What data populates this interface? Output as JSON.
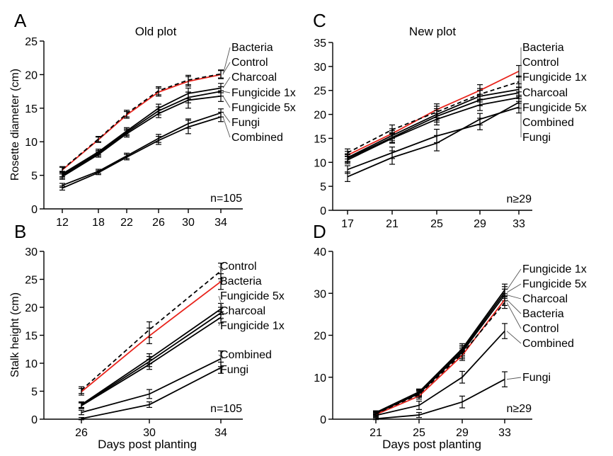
{
  "chart_data": [
    {
      "type": "line",
      "panel_letter": "A",
      "title": "Old plot",
      "xlabel": "",
      "ylabel": "Rosette diameter (cm)",
      "x": [
        12,
        18,
        22,
        26,
        30,
        34
      ],
      "ylim": [
        0,
        25
      ],
      "yticks": [
        0,
        5,
        10,
        15,
        20,
        25
      ],
      "annotation": "n=105",
      "series": [
        {
          "name": "Bacteria",
          "color": "#e8231b",
          "dashed": false,
          "values": [
            5.8,
            10.3,
            14.0,
            17.4,
            19.0,
            20.0
          ],
          "errors": [
            0.4,
            0.4,
            0.5,
            0.6,
            0.7,
            0.6
          ]
        },
        {
          "name": "Control",
          "color": "#000000",
          "dashed": true,
          "values": [
            5.9,
            10.4,
            14.2,
            17.6,
            19.2,
            20.1
          ],
          "errors": [
            0.4,
            0.4,
            0.5,
            0.6,
            0.7,
            0.6
          ]
        },
        {
          "name": "Charcoal",
          "color": "#000000",
          "dashed": false,
          "values": [
            5.2,
            8.5,
            11.6,
            15.0,
            17.2,
            18.0
          ],
          "errors": [
            0.4,
            0.4,
            0.5,
            0.6,
            0.8,
            0.7
          ]
        },
        {
          "name": "Fungicide 1x",
          "color": "#000000",
          "dashed": false,
          "values": [
            5.0,
            8.3,
            11.4,
            14.6,
            16.6,
            17.5
          ],
          "errors": [
            0.4,
            0.4,
            0.5,
            0.6,
            0.8,
            0.7
          ]
        },
        {
          "name": "Fungicide 5x",
          "color": "#000000",
          "dashed": false,
          "values": [
            4.8,
            8.1,
            11.2,
            14.2,
            16.2,
            16.8
          ],
          "errors": [
            0.4,
            0.4,
            0.5,
            0.6,
            1.2,
            0.8
          ]
        },
        {
          "name": "Fungi",
          "color": "#000000",
          "dashed": false,
          "values": [
            3.5,
            5.6,
            7.9,
            10.5,
            12.7,
            14.3
          ],
          "errors": [
            0.3,
            0.3,
            0.4,
            0.6,
            0.7,
            0.6
          ]
        },
        {
          "name": "Combined",
          "color": "#000000",
          "dashed": false,
          "values": [
            3.1,
            5.4,
            7.7,
            10.2,
            12.2,
            13.7
          ],
          "errors": [
            0.3,
            0.3,
            0.4,
            0.6,
            1.0,
            0.7
          ]
        }
      ]
    },
    {
      "type": "line",
      "panel_letter": "C",
      "title": "New plot",
      "xlabel": "",
      "ylabel": "",
      "x": [
        17,
        21,
        25,
        29,
        33
      ],
      "ylim": [
        0,
        35
      ],
      "yticks": [
        0,
        5,
        10,
        15,
        20,
        25,
        30,
        35
      ],
      "annotation": "n≥29",
      "series": [
        {
          "name": "Bacteria",
          "color": "#e8231b",
          "dashed": false,
          "values": [
            11.5,
            16.0,
            21.0,
            25.0,
            29.0
          ],
          "errors": [
            0.8,
            1.0,
            1.2,
            1.2,
            1.2
          ]
        },
        {
          "name": "Control",
          "color": "#000000",
          "dashed": true,
          "values": [
            12.0,
            16.8,
            20.5,
            24.2,
            26.8
          ],
          "errors": [
            0.8,
            1.0,
            1.2,
            1.2,
            1.2
          ]
        },
        {
          "name": "Fungicide 1x",
          "color": "#000000",
          "dashed": false,
          "values": [
            11.0,
            15.6,
            20.0,
            23.8,
            25.2
          ],
          "errors": [
            0.8,
            1.0,
            1.2,
            1.2,
            1.2
          ]
        },
        {
          "name": "Charcoal",
          "color": "#000000",
          "dashed": false,
          "values": [
            10.8,
            15.2,
            19.6,
            23.0,
            24.5
          ],
          "errors": [
            0.8,
            1.0,
            1.2,
            1.2,
            1.2
          ]
        },
        {
          "name": "Fungicide 5x",
          "color": "#000000",
          "dashed": false,
          "values": [
            10.5,
            15.0,
            19.0,
            22.0,
            23.5
          ],
          "errors": [
            0.8,
            1.0,
            1.2,
            1.2,
            1.2
          ]
        },
        {
          "name": "Combined",
          "color": "#000000",
          "dashed": false,
          "values": [
            8.5,
            12.0,
            15.5,
            18.0,
            22.5
          ],
          "errors": [
            0.8,
            1.2,
            1.4,
            1.2,
            1.2
          ]
        },
        {
          "name": "Fungi",
          "color": "#000000",
          "dashed": false,
          "values": [
            7.0,
            11.0,
            14.0,
            19.0,
            21.5
          ],
          "errors": [
            1.0,
            1.4,
            1.6,
            1.2,
            1.2
          ]
        }
      ]
    },
    {
      "type": "line",
      "panel_letter": "B",
      "title": "",
      "xlabel": "Days post planting",
      "ylabel": "Stalk height (cm)",
      "x": [
        26,
        30,
        34
      ],
      "ylim": [
        0,
        30
      ],
      "yticks": [
        0,
        5,
        10,
        15,
        20,
        25,
        30
      ],
      "annotation": "n=105",
      "series": [
        {
          "name": "Control",
          "color": "#000000",
          "dashed": true,
          "values": [
            5.2,
            16.0,
            26.5
          ],
          "errors": [
            0.6,
            1.4,
            1.4
          ]
        },
        {
          "name": "Bacteria",
          "color": "#e8231b",
          "dashed": false,
          "values": [
            4.9,
            14.9,
            24.6
          ],
          "errors": [
            0.6,
            1.4,
            1.4
          ]
        },
        {
          "name": "Fungicide 5x",
          "color": "#000000",
          "dashed": false,
          "values": [
            2.6,
            10.8,
            19.7
          ],
          "errors": [
            0.5,
            0.9,
            1.0
          ]
        },
        {
          "name": "Charcoal",
          "color": "#000000",
          "dashed": false,
          "values": [
            2.5,
            10.3,
            19.0
          ],
          "errors": [
            0.5,
            0.9,
            1.0
          ]
        },
        {
          "name": "Fungicide 1x",
          "color": "#000000",
          "dashed": false,
          "values": [
            2.4,
            9.8,
            18.2
          ],
          "errors": [
            0.5,
            0.9,
            1.0
          ]
        },
        {
          "name": "Combined",
          "color": "#000000",
          "dashed": false,
          "values": [
            1.2,
            4.5,
            10.8
          ],
          "errors": [
            0.4,
            0.8,
            1.4
          ]
        },
        {
          "name": "Fungi",
          "color": "#000000",
          "dashed": false,
          "values": [
            0.1,
            2.6,
            9.2
          ],
          "errors": [
            0.2,
            0.5,
            1.0
          ]
        }
      ]
    },
    {
      "type": "line",
      "panel_letter": "D",
      "title": "",
      "xlabel": "Days post planting",
      "ylabel": "",
      "x": [
        21,
        25,
        29,
        33
      ],
      "ylim": [
        0,
        40
      ],
      "yticks": [
        0,
        10,
        20,
        30,
        40
      ],
      "annotation": "n≥29",
      "series": [
        {
          "name": "Fungicide 1x",
          "color": "#000000",
          "dashed": false,
          "values": [
            1.6,
            6.5,
            16.8,
            30.8
          ],
          "errors": [
            0.4,
            0.7,
            1.2,
            1.4
          ]
        },
        {
          "name": "Fungicide 5x",
          "color": "#000000",
          "dashed": false,
          "values": [
            1.5,
            6.3,
            16.4,
            30.2
          ],
          "errors": [
            0.4,
            0.7,
            1.2,
            1.4
          ]
        },
        {
          "name": "Charcoal",
          "color": "#000000",
          "dashed": false,
          "values": [
            1.4,
            6.1,
            16.0,
            29.6
          ],
          "errors": [
            0.4,
            0.7,
            1.2,
            1.4
          ]
        },
        {
          "name": "Bacteria",
          "color": "#e8231b",
          "dashed": false,
          "values": [
            1.1,
            5.5,
            15.2,
            28.5
          ],
          "errors": [
            0.4,
            0.7,
            1.2,
            1.4
          ]
        },
        {
          "name": "Control",
          "color": "#000000",
          "dashed": true,
          "values": [
            1.3,
            5.9,
            15.6,
            27.8
          ],
          "errors": [
            0.4,
            0.7,
            1.2,
            1.4
          ]
        },
        {
          "name": "Combined",
          "color": "#000000",
          "dashed": false,
          "values": [
            0.9,
            3.3,
            10.0,
            21.0
          ],
          "errors": [
            0.4,
            1.0,
            1.4,
            1.8
          ]
        },
        {
          "name": "Fungi",
          "color": "#000000",
          "dashed": false,
          "values": [
            0.1,
            1.0,
            4.1,
            9.5
          ],
          "errors": [
            0.2,
            0.6,
            1.4,
            1.8
          ]
        }
      ]
    }
  ]
}
